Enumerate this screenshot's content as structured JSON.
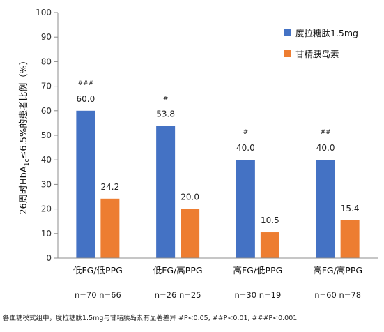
{
  "chart_data": {
    "type": "bar",
    "ylabel": "26周时HbA1c≤6.5%的患者比例（%）",
    "ylabel_parts": {
      "pre": "26周时HbA",
      "sub": "1c",
      "post": "≤6.5%的患者比例（%）"
    },
    "ylim": [
      0,
      100
    ],
    "yticks": [
      0,
      10,
      20,
      30,
      40,
      50,
      60,
      70,
      80,
      90,
      100
    ],
    "categories": [
      "低FG/低PPG",
      "低FG/高PPG",
      "高FG/低PPG",
      "高FG/高PPG"
    ],
    "n_labels": [
      "n=70 n=66",
      "n=26 n=25",
      "n=30 n=19",
      "n=60 n=78"
    ],
    "significance": [
      "###",
      "#",
      "#",
      "##"
    ],
    "series": [
      {
        "name": "度拉糖肽1.5mg",
        "color": "#4472C4",
        "values": [
          60.0,
          53.8,
          40.0,
          40.0
        ],
        "labels": [
          "60.0",
          "53.8",
          "40.0",
          "40.0"
        ]
      },
      {
        "name": "甘精胰岛素",
        "color": "#ED7D31",
        "values": [
          24.2,
          20.0,
          10.5,
          15.4
        ],
        "labels": [
          "24.2",
          "20.0",
          "10.5",
          "15.4"
        ]
      }
    ],
    "legend_position": "top-right",
    "grid": false,
    "footnote": "各血糖模式组中，度拉糖肽1.5mg与甘精胰岛素有显著差异 #P<0.05, ##P<0.01, ###P<0.001"
  }
}
